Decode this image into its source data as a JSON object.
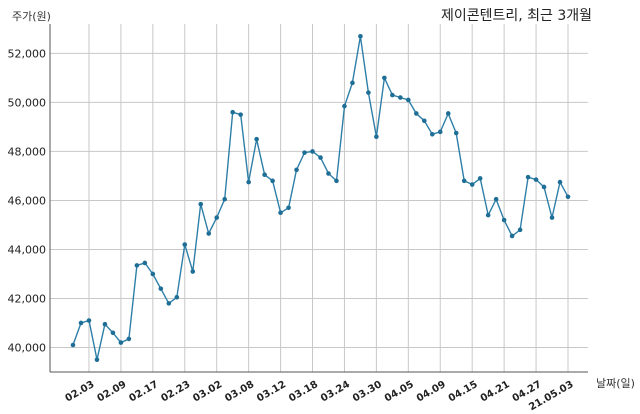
{
  "chart_data": {
    "type": "line",
    "title": "제이콘텐트리, 최근 3개월",
    "ylabel": "주가(원)",
    "xlabel": "날짜(일)",
    "ylim": [
      39000,
      53200
    ],
    "yticks": [
      40000,
      42000,
      44000,
      46000,
      48000,
      50000,
      52000
    ],
    "ytick_labels": [
      "40,000",
      "42,000",
      "44,000",
      "46,000",
      "48,000",
      "50,000",
      "52,000"
    ],
    "grid": true,
    "colors": {
      "line": "#2e7fa8",
      "marker": "#1f6e96"
    },
    "xtick_labels": [
      "02.03",
      "02.09",
      "02.17",
      "02.23",
      "03.02",
      "03.08",
      "03.12",
      "03.18",
      "03.24",
      "03.30",
      "04.05",
      "04.09",
      "04.15",
      "04.21",
      "04.27",
      "21.05.03"
    ],
    "xtick_index": [
      2,
      6,
      10,
      14,
      18,
      22,
      26,
      30,
      34,
      38,
      42,
      46,
      50,
      54,
      58,
      62
    ],
    "values": [
      40100,
      41000,
      41100,
      39500,
      40950,
      40600,
      40200,
      40350,
      43350,
      43450,
      43000,
      42400,
      41800,
      42050,
      44200,
      43100,
      45850,
      44650,
      45300,
      46050,
      49600,
      49500,
      46750,
      48500,
      47050,
      46800,
      45500,
      45700,
      47250,
      47950,
      48000,
      47750,
      47100,
      46800,
      49850,
      50800,
      52700,
      50400,
      48600,
      51000,
      50300,
      50200,
      50100,
      49550,
      49250,
      48700,
      48800,
      49550,
      48750,
      46800,
      46650,
      46900,
      45400,
      46050,
      45200,
      44550,
      44800,
      46950,
      46850,
      46550,
      45300,
      46750,
      46150
    ]
  }
}
